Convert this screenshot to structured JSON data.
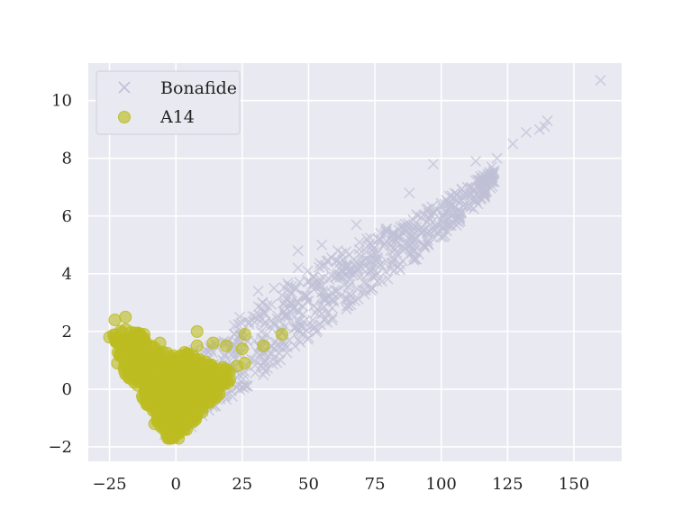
{
  "chart_data": {
    "type": "scatter",
    "title": "",
    "xlabel": "",
    "ylabel": "",
    "xlim": [
      -33,
      168
    ],
    "ylim": [
      -2.5,
      11.3
    ],
    "x_ticks": [
      -25,
      0,
      25,
      50,
      75,
      100,
      125,
      150
    ],
    "x_tick_labels": [
      "−25",
      "0",
      "25",
      "50",
      "75",
      "100",
      "125",
      "150"
    ],
    "y_ticks": [
      -2,
      0,
      2,
      4,
      6,
      8,
      10
    ],
    "y_tick_labels": [
      "−2",
      "0",
      "2",
      "4",
      "6",
      "8",
      "10"
    ],
    "grid": true,
    "background": "#e9e9f1",
    "grid_color": "#ffffff",
    "legend_position": "top-left",
    "series": [
      {
        "name": "Bonafide",
        "marker": "x",
        "color": "#bfc0d6",
        "outliers": [
          [
            160,
            10.7
          ],
          [
            140,
            9.3
          ],
          [
            137,
            9.0
          ],
          [
            139,
            9.1
          ],
          [
            132,
            8.9
          ],
          [
            127,
            8.5
          ],
          [
            121,
            8.0
          ],
          [
            119,
            7.7
          ],
          [
            113,
            7.9
          ],
          [
            97,
            7.8
          ],
          [
            68,
            5.7
          ],
          [
            46,
            4.8
          ],
          [
            46,
            4.2
          ],
          [
            61,
            4.8
          ],
          [
            31,
            3.4
          ],
          [
            37,
            3.5
          ],
          [
            24,
            2.5
          ],
          [
            22,
            2.2
          ],
          [
            55,
            5.0
          ],
          [
            88,
            6.8
          ]
        ],
        "band": [
          [
            -5,
            -1.6,
            -0.4
          ],
          [
            5,
            -1.4,
            1.4
          ],
          [
            15,
            -0.6,
            1.6
          ],
          [
            25,
            -0.1,
            2.4
          ],
          [
            35,
            0.6,
            3.3
          ],
          [
            45,
            1.4,
            3.9
          ],
          [
            55,
            2.1,
            4.4
          ],
          [
            65,
            2.8,
            5.0
          ],
          [
            75,
            3.5,
            5.4
          ],
          [
            85,
            4.1,
            5.8
          ],
          [
            95,
            4.8,
            6.3
          ],
          [
            105,
            5.6,
            6.8
          ],
          [
            115,
            6.5,
            7.4
          ],
          [
            120,
            7.0,
            7.6
          ]
        ]
      },
      {
        "name": "A14",
        "marker": "o",
        "color": "#bcbd22",
        "outliers": [
          [
            -23,
            2.4
          ],
          [
            -19,
            2.5
          ],
          [
            -25,
            1.8
          ],
          [
            -21,
            1.2
          ],
          [
            -22,
            0.9
          ],
          [
            8,
            2.0
          ],
          [
            8,
            1.5
          ],
          [
            14,
            1.6
          ],
          [
            19,
            1.5
          ],
          [
            26,
            1.9
          ],
          [
            25,
            1.4
          ],
          [
            33,
            1.5
          ],
          [
            40,
            1.9
          ],
          [
            26,
            0.9
          ],
          [
            23,
            0.8
          ],
          [
            -8,
            -1.2
          ],
          [
            -3,
            -1.7
          ],
          [
            1,
            -1.7
          ],
          [
            4,
            -1.4
          ],
          [
            -12,
            1.9
          ],
          [
            -6,
            1.6
          ]
        ],
        "region_polygon": [
          [
            -24,
            2.0
          ],
          [
            -18,
            2.1
          ],
          [
            -12,
            1.9
          ],
          [
            -7,
            1.4
          ],
          [
            -2,
            1.2
          ],
          [
            4,
            1.3
          ],
          [
            9,
            1.1
          ],
          [
            15,
            0.8
          ],
          [
            21,
            0.7
          ],
          [
            22,
            0.3
          ],
          [
            16,
            -0.2
          ],
          [
            10,
            -0.8
          ],
          [
            5,
            -1.3
          ],
          [
            0,
            -1.8
          ],
          [
            -3,
            -1.7
          ],
          [
            -8,
            -1.0
          ],
          [
            -13,
            -0.3
          ],
          [
            -18,
            0.3
          ],
          [
            -21,
            0.9
          ]
        ]
      }
    ]
  }
}
